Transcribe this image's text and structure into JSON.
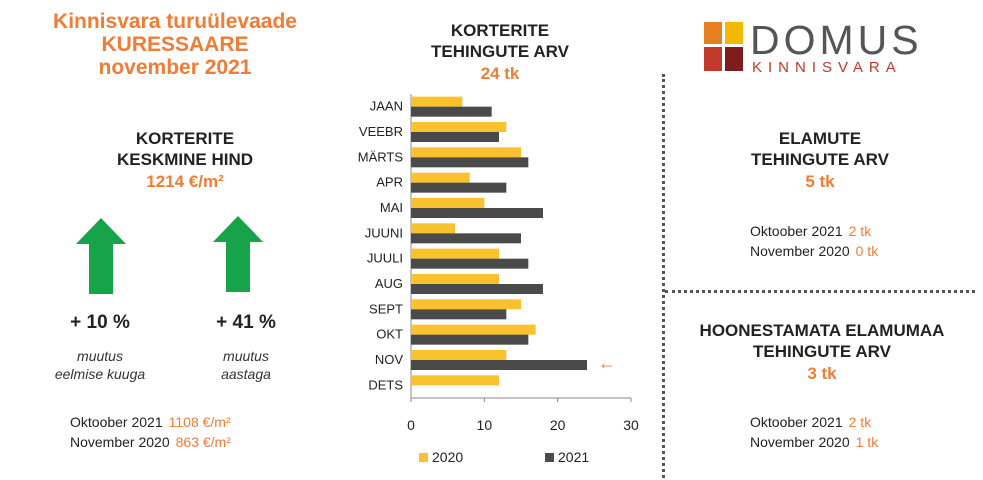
{
  "header": {
    "line1": "Kinnisvara turuülevaade",
    "line2": "KURESSAARE",
    "line3": "november 2021"
  },
  "left_panel": {
    "title_line1": "KORTERITE",
    "title_line2": "KESKMINE HIND",
    "value": "1214 €/m²",
    "change_month": {
      "pct": "+ 10 %",
      "note_line1": "muutus",
      "note_line2": "eelmise kuuga"
    },
    "change_year": {
      "pct": "+ 41 %",
      "note_line1": "muutus",
      "note_line2": "aastaga"
    },
    "compare": [
      {
        "label": "Oktoober 2021",
        "value": "1108 €/m²"
      },
      {
        "label": "November 2020",
        "value": "863 €/m²"
      }
    ]
  },
  "center_panel": {
    "title_line1": "KORTERITE",
    "title_line2": "TEHINGUTE ARV",
    "value": "24 tk",
    "highlight_arrow": "←"
  },
  "right_top": {
    "title_line1": "ELAMUTE",
    "title_line2": "TEHINGUTE ARV",
    "value": "5 tk",
    "compare": [
      {
        "label": "Oktoober 2021",
        "value": "2 tk"
      },
      {
        "label": "November 2020",
        "value": "0 tk"
      }
    ]
  },
  "right_bottom": {
    "title_line1": "HOONESTAMATA ELAMUMAA",
    "title_line2": "TEHINGUTE ARV",
    "value": "3 tk",
    "compare": [
      {
        "label": "Oktoober 2021",
        "value": "2 tk"
      },
      {
        "label": "November 2020",
        "value": "1 tk"
      }
    ]
  },
  "logo": {
    "name": "DOMUS",
    "sub": "KINNISVARA",
    "colors": [
      "#e67e22",
      "#f5b800",
      "#c0392b",
      "#7f1d1d"
    ]
  },
  "colors": {
    "accent": "#f07c35",
    "arrow_green": "#16a34a",
    "series_2020": "#f9c22e",
    "series_2021": "#4a4a4a"
  },
  "icons": {
    "up_arrow": "up-arrow-icon",
    "left_arrow": "left-arrow-icon"
  },
  "chart_data": {
    "type": "bar",
    "orientation": "horizontal",
    "categories": [
      "JAAN",
      "VEEBR",
      "MÄRTS",
      "APR",
      "MAI",
      "JUUNI",
      "JUULI",
      "AUG",
      "SEPT",
      "OKT",
      "NOV",
      "DETS"
    ],
    "series": [
      {
        "name": "2020",
        "values": [
          7,
          13,
          15,
          8,
          10,
          6,
          12,
          12,
          15,
          17,
          13,
          12
        ]
      },
      {
        "name": "2021",
        "values": [
          11,
          12,
          16,
          13,
          18,
          15,
          16,
          18,
          13,
          16,
          24,
          null
        ]
      }
    ],
    "xlim": [
      0,
      30
    ],
    "xticks": [
      0,
      10,
      20,
      30
    ],
    "legend_position": "bottom",
    "grid": false
  }
}
